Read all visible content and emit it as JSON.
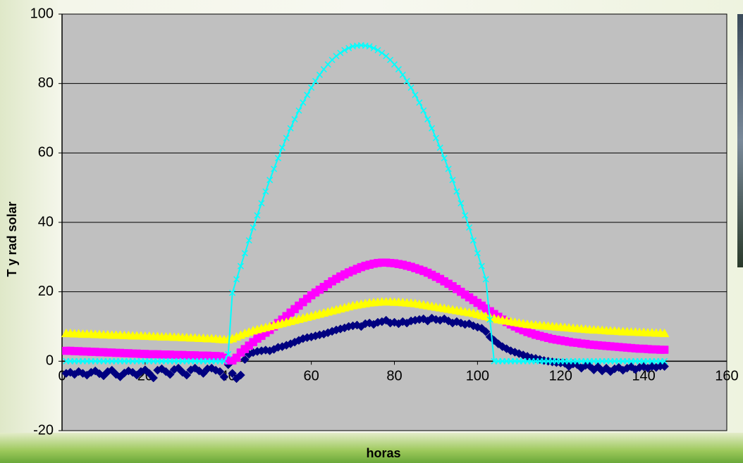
{
  "chart_data": {
    "type": "scatter",
    "xlabel": "horas",
    "ylabel": "T y rad solar",
    "xlim": [
      0,
      160
    ],
    "xticks": [
      0,
      20,
      40,
      60,
      80,
      100,
      120,
      140,
      160
    ],
    "ylim": [
      -20,
      100
    ],
    "yticks": [
      -20,
      0,
      20,
      40,
      60,
      80,
      100
    ],
    "grid": true,
    "plot_color": "#c0c0c0",
    "x": [
      1,
      2,
      3,
      4,
      5,
      6,
      7,
      8,
      9,
      10,
      11,
      12,
      13,
      14,
      15,
      16,
      17,
      18,
      19,
      20,
      21,
      22,
      23,
      24,
      25,
      26,
      27,
      28,
      29,
      30,
      31,
      32,
      33,
      34,
      35,
      36,
      37,
      38,
      39,
      40,
      41,
      42,
      43,
      44,
      45,
      46,
      47,
      48,
      49,
      50,
      51,
      52,
      53,
      54,
      55,
      56,
      57,
      58,
      59,
      60,
      61,
      62,
      63,
      64,
      65,
      66,
      67,
      68,
      69,
      70,
      71,
      72,
      73,
      74,
      75,
      76,
      77,
      78,
      79,
      80,
      81,
      82,
      83,
      84,
      85,
      86,
      87,
      88,
      89,
      90,
      91,
      92,
      93,
      94,
      95,
      96,
      97,
      98,
      99,
      100,
      101,
      102,
      103,
      104,
      105,
      106,
      107,
      108,
      109,
      110,
      111,
      112,
      113,
      114,
      115,
      116,
      117,
      118,
      119,
      120,
      121,
      122,
      123,
      124,
      125,
      126,
      127,
      128,
      129,
      130,
      131,
      132,
      133,
      134,
      135,
      136,
      137,
      138,
      139,
      140,
      141,
      142,
      143,
      144,
      145
    ],
    "series": [
      {
        "color": "#000080",
        "marker": "diamond",
        "line": false,
        "values": [
          -3.5,
          -3.2,
          -3.8,
          -3.0,
          -3.5,
          -4.0,
          -3.2,
          -2.8,
          -3.6,
          -4.2,
          -3.0,
          -2.6,
          -3.8,
          -4.5,
          -3.4,
          -2.8,
          -3.2,
          -4.0,
          -3.0,
          -2.5,
          -3.5,
          -4.8,
          -2.6,
          -2.2,
          -3.0,
          -3.8,
          -2.4,
          -2.0,
          -3.2,
          -4.0,
          -2.5,
          -2.0,
          -2.8,
          -3.5,
          -2.2,
          -2.0,
          -2.6,
          -3.0,
          -4.5,
          -1.0,
          -3.5,
          -5.0,
          -4.0,
          0.5,
          2.0,
          2.5,
          2.8,
          3.0,
          3.2,
          3.0,
          3.4,
          4.0,
          4.2,
          4.6,
          5.0,
          5.5,
          6.0,
          6.5,
          6.8,
          7.0,
          7.3,
          7.6,
          7.8,
          8.2,
          8.6,
          9.0,
          9.3,
          9.6,
          10.0,
          10.2,
          10.4,
          10.0,
          10.8,
          11.0,
          10.6,
          11.2,
          11.4,
          11.8,
          11.0,
          11.2,
          10.8,
          11.4,
          11.0,
          11.6,
          11.8,
          12.0,
          12.2,
          11.6,
          12.4,
          12.0,
          11.8,
          12.2,
          11.6,
          11.0,
          11.4,
          11.0,
          10.6,
          10.8,
          10.2,
          9.8,
          9.5,
          8.5,
          7.0,
          6.0,
          5.0,
          4.2,
          3.6,
          3.0,
          2.6,
          2.2,
          1.8,
          1.4,
          1.0,
          0.8,
          0.5,
          0.2,
          0.0,
          -0.2,
          -0.4,
          -0.5,
          -0.6,
          -1.5,
          -0.8,
          -1.0,
          -2.0,
          -1.2,
          -1.4,
          -2.5,
          -1.6,
          -2.8,
          -2.0,
          -3.0,
          -2.2,
          -1.8,
          -2.6,
          -2.0,
          -1.6,
          -2.4,
          -1.8,
          -1.6,
          -2.0,
          -1.5,
          -1.8,
          -1.4,
          -1.5
        ]
      },
      {
        "color": "#ff00ff",
        "marker": "square",
        "line": false,
        "values": [
          3,
          3,
          2.9,
          2.9,
          2.8,
          2.8,
          2.7,
          2.7,
          2.6,
          2.6,
          2.5,
          2.5,
          2.4,
          2.4,
          2.3,
          2.3,
          2.2,
          2.2,
          2.1,
          2.1,
          2.0,
          2.0,
          2.0,
          1.9,
          1.9,
          1.9,
          1.8,
          1.8,
          1.8,
          1.7,
          1.7,
          1.7,
          1.6,
          1.6,
          1.6,
          1.5,
          1.5,
          1.4,
          1.0,
          0.2,
          0.2,
          1.0,
          2.5,
          3.5,
          4.5,
          5.5,
          6.5,
          7.3,
          8.2,
          9.0,
          10.0,
          11.0,
          12.0,
          13.0,
          14.0,
          15.0,
          16.0,
          17.0,
          18.0,
          19.0,
          19.8,
          20.6,
          21.4,
          22.2,
          23.0,
          23.7,
          24.4,
          25.0,
          25.6,
          26.1,
          26.6,
          27.1,
          27.5,
          27.8,
          28.1,
          28.3,
          28.4,
          28.4,
          28.3,
          28.2,
          28.0,
          27.8,
          27.5,
          27.2,
          26.8,
          26.4,
          26.0,
          25.5,
          24.9,
          24.3,
          23.7,
          23.0,
          22.3,
          21.6,
          20.8,
          20.0,
          19.2,
          18.4,
          17.6,
          16.8,
          16.0,
          15.2,
          14.4,
          13.6,
          12.8,
          12.0,
          11.3,
          10.6,
          10.0,
          9.4,
          8.9,
          8.4,
          8.0,
          7.6,
          7.3,
          7.0,
          6.7,
          6.4,
          6.2,
          6.0,
          5.8,
          5.6,
          5.4,
          5.3,
          5.1,
          5.0,
          4.8,
          4.7,
          4.6,
          4.5,
          4.4,
          4.3,
          4.2,
          4.1,
          4.0,
          3.9,
          3.8,
          3.7,
          3.6,
          3.6,
          3.5,
          3.4,
          3.4,
          3.3,
          3.3
        ]
      },
      {
        "color": "#ffff00",
        "marker": "triangle",
        "line": false,
        "values": [
          8,
          8,
          7.9,
          7.9,
          7.8,
          7.8,
          7.8,
          7.7,
          7.7,
          7.6,
          7.6,
          7.5,
          7.5,
          7.5,
          7.4,
          7.4,
          7.3,
          7.3,
          7.3,
          7.2,
          7.2,
          7.1,
          7.1,
          7.0,
          7.0,
          7.0,
          6.9,
          6.9,
          6.8,
          6.8,
          6.7,
          6.7,
          6.6,
          6.6,
          6.5,
          6.5,
          6.4,
          6.3,
          6.2,
          6.2,
          6.5,
          7.0,
          7.5,
          8.0,
          8.4,
          8.8,
          9.1,
          9.4,
          9.7,
          10.0,
          10.3,
          10.6,
          10.9,
          11.2,
          11.5,
          11.8,
          12.1,
          12.4,
          12.7,
          13.0,
          13.3,
          13.6,
          13.9,
          14.2,
          14.5,
          14.8,
          15.1,
          15.4,
          15.7,
          16.0,
          16.2,
          16.4,
          16.6,
          16.8,
          16.9,
          17.0,
          17.1,
          17.1,
          17.1,
          17.0,
          17.0,
          16.9,
          16.8,
          16.7,
          16.6,
          16.4,
          16.2,
          16.0,
          15.8,
          15.6,
          15.4,
          15.2,
          15.0,
          14.8,
          14.6,
          14.4,
          14.2,
          14.0,
          13.8,
          13.5,
          13.2,
          12.9,
          12.6,
          12.3,
          12.0,
          11.8,
          11.6,
          11.4,
          11.2,
          11.0,
          10.8,
          10.6,
          10.5,
          10.4,
          10.3,
          10.2,
          10.1,
          10.0,
          9.9,
          9.8,
          9.7,
          9.6,
          9.5,
          9.4,
          9.3,
          9.2,
          9.1,
          9.0,
          9.0,
          8.9,
          8.8,
          8.7,
          8.7,
          8.6,
          8.5,
          8.5,
          8.4,
          8.4,
          8.3,
          8.3,
          8.2,
          8.2,
          8.1,
          8.1,
          8.0
        ]
      },
      {
        "color": "#00ffff",
        "marker": "x",
        "line": true,
        "values": [
          0,
          0,
          0,
          0,
          0,
          0,
          0,
          0,
          0,
          0,
          0,
          0,
          0,
          0,
          0,
          0,
          0,
          0,
          0,
          0,
          0,
          0,
          0,
          0,
          0,
          0,
          0,
          0,
          0,
          0,
          0,
          0,
          0,
          0,
          0,
          0,
          0,
          0,
          0,
          2,
          19.7,
          23.6,
          27.4,
          31.1,
          34.8,
          38.5,
          42.0,
          45.5,
          48.9,
          52.2,
          55.4,
          58.5,
          61.5,
          64.3,
          67.1,
          69.7,
          72.2,
          74.5,
          76.7,
          78.8,
          80.7,
          82.5,
          84.1,
          85.5,
          86.8,
          87.9,
          88.8,
          89.6,
          90.2,
          90.7,
          90.9,
          91,
          90.9,
          90.7,
          90.2,
          89.6,
          88.8,
          87.9,
          86.8,
          85.5,
          84.1,
          82.5,
          80.7,
          78.8,
          76.7,
          74.5,
          72.2,
          69.7,
          67.1,
          64.3,
          61.5,
          58.5,
          55.4,
          52.2,
          48.9,
          45.5,
          42.0,
          38.5,
          34.8,
          31.1,
          27.4,
          23.6,
          12,
          0,
          0,
          0,
          0,
          0,
          0,
          0,
          0,
          0,
          0,
          0,
          0,
          0,
          0,
          0,
          0,
          0,
          0,
          0,
          0,
          0,
          0,
          0,
          0,
          0,
          0,
          0,
          0,
          0,
          0,
          0,
          0,
          0,
          0,
          0,
          0,
          0,
          0,
          0,
          0,
          0,
          0
        ]
      }
    ]
  }
}
